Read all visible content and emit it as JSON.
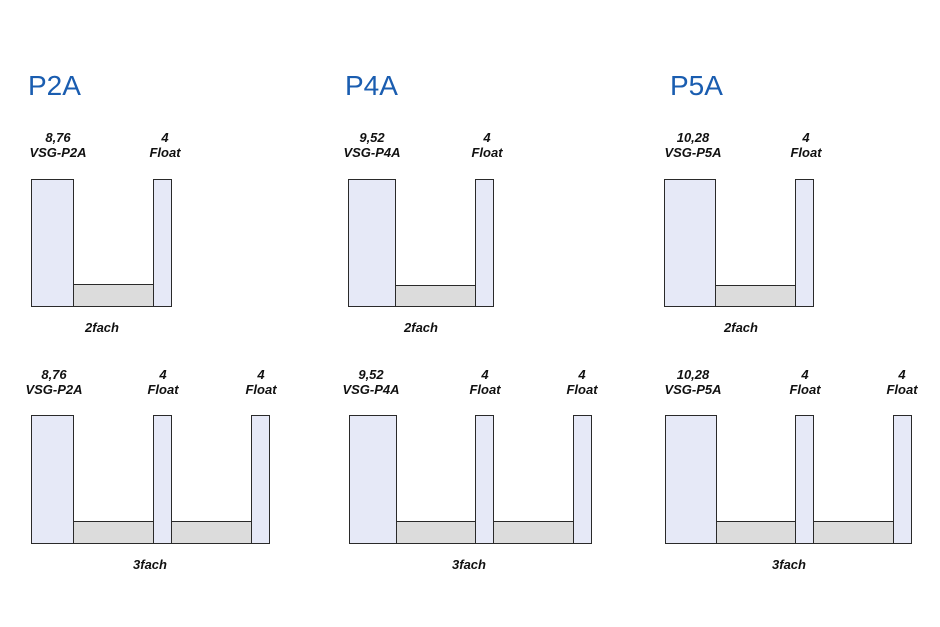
{
  "groups": [
    {
      "title": "P2A",
      "double": {
        "left": [
          "8,76",
          "VSG-P2A"
        ],
        "right": [
          "4",
          "Float"
        ],
        "caption": "2fach"
      },
      "triple": {
        "left": [
          "8,76",
          "VSG-P2A"
        ],
        "mid": [
          "4",
          "Float"
        ],
        "right": [
          "4",
          "Float"
        ],
        "caption": "3fach"
      }
    },
    {
      "title": "P4A",
      "double": {
        "left": [
          "9,52",
          "VSG-P4A"
        ],
        "right": [
          "4",
          "Float"
        ],
        "caption": "2fach"
      },
      "triple": {
        "left": [
          "9,52",
          "VSG-P4A"
        ],
        "mid": [
          "4",
          "Float"
        ],
        "right": [
          "4",
          "Float"
        ],
        "caption": "3fach"
      }
    },
    {
      "title": "P5A",
      "double": {
        "left": [
          "10,28",
          "VSG-P5A"
        ],
        "right": [
          "4",
          "Float"
        ],
        "caption": "2fach"
      },
      "triple": {
        "left": [
          "10,28",
          "VSG-P5A"
        ],
        "mid": [
          "4",
          "Float"
        ],
        "right": [
          "4",
          "Float"
        ],
        "caption": "3fach"
      }
    }
  ],
  "colors": {
    "title": "#1a5db0",
    "pane": "#e6e9f7",
    "spacer": "#dcdcdc",
    "outline": "#2a2a2a"
  }
}
